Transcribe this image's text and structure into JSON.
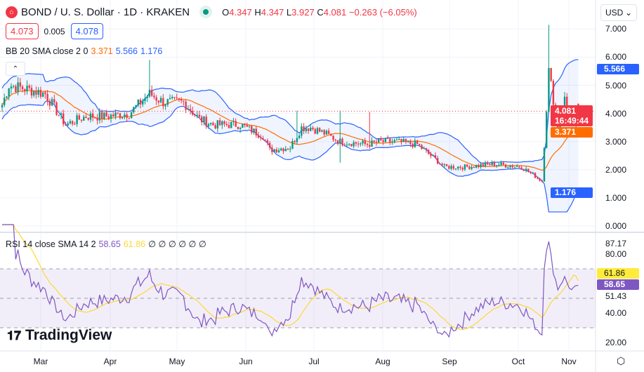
{
  "header": {
    "symbol": "BOND",
    "pair": "/ U. S. Dollar · 1D · KRAKEN",
    "o_label": "O",
    "o": "4.347",
    "h_label": "H",
    "h": "4.347",
    "l_label": "L",
    "l": "3.927",
    "c_label": "C",
    "c": "4.081",
    "change": "−0.263 (−6.05%)"
  },
  "quote": {
    "bid": "4.073",
    "spread": "0.005",
    "ask": "4.078"
  },
  "bb": {
    "label": "BB 20 SMA close 2 0",
    "basis": "3.371",
    "upper": "5.566",
    "lower": "1.176"
  },
  "rsi": {
    "label": "RSI 14 close SMA 14 2",
    "value": "58.65",
    "sma": "61.86",
    "extra": "∅ ∅ ∅ ∅ ∅ ∅"
  },
  "currency": "USD",
  "price_axis": [
    "7.000",
    "6.000",
    "5.000",
    "4.000",
    "3.000",
    "2.000",
    "1.000",
    "0.000"
  ],
  "rsi_axis": [
    "87.17",
    "80.00",
    "51.43",
    "40.00",
    "20.00"
  ],
  "tags": {
    "last_price": "4.081",
    "countdown": "16:49:44",
    "basis": "3.371",
    "upper": "5.566",
    "lower": "1.176",
    "rsi_sma": "61.86",
    "rsi": "58.65"
  },
  "time_axis": [
    "Mar",
    "Apr",
    "May",
    "Jun",
    "Jul",
    "Aug",
    "Sep",
    "Oct",
    "Nov"
  ],
  "brand": "TradingView",
  "colors": {
    "up": "#089981",
    "down": "#f23645",
    "bb_band": "#2962ff",
    "bb_basis": "#ff6d00",
    "rsi": "#7e57c2",
    "rsi_sma": "#fdd835"
  },
  "price_keypoints": [
    [
      0,
      4.3
    ],
    [
      3,
      5.0
    ],
    [
      9,
      4.9
    ],
    [
      19,
      4.7
    ],
    [
      28,
      3.6
    ],
    [
      37,
      3.9
    ],
    [
      46,
      3.9
    ],
    [
      56,
      4.0
    ],
    [
      65,
      4.7
    ],
    [
      71,
      4.4
    ],
    [
      80,
      4.4
    ],
    [
      87,
      3.8
    ],
    [
      93,
      3.6
    ],
    [
      105,
      3.6
    ],
    [
      115,
      3.2
    ],
    [
      118,
      2.7
    ],
    [
      127,
      2.8
    ],
    [
      132,
      3.5
    ],
    [
      136,
      3.5
    ],
    [
      142,
      3.3
    ],
    [
      149,
      3.0
    ],
    [
      161,
      2.9
    ],
    [
      167,
      3.0
    ],
    [
      173,
      3.0
    ],
    [
      183,
      2.9
    ],
    [
      189,
      2.5
    ],
    [
      195,
      2.1
    ],
    [
      204,
      2.1
    ],
    [
      217,
      2.2
    ],
    [
      229,
      2.1
    ],
    [
      238,
      1.6
    ],
    [
      241,
      5.5
    ],
    [
      245,
      3.5
    ],
    [
      248,
      4.5
    ],
    [
      251,
      3.8
    ],
    [
      254,
      4.081
    ]
  ]
}
